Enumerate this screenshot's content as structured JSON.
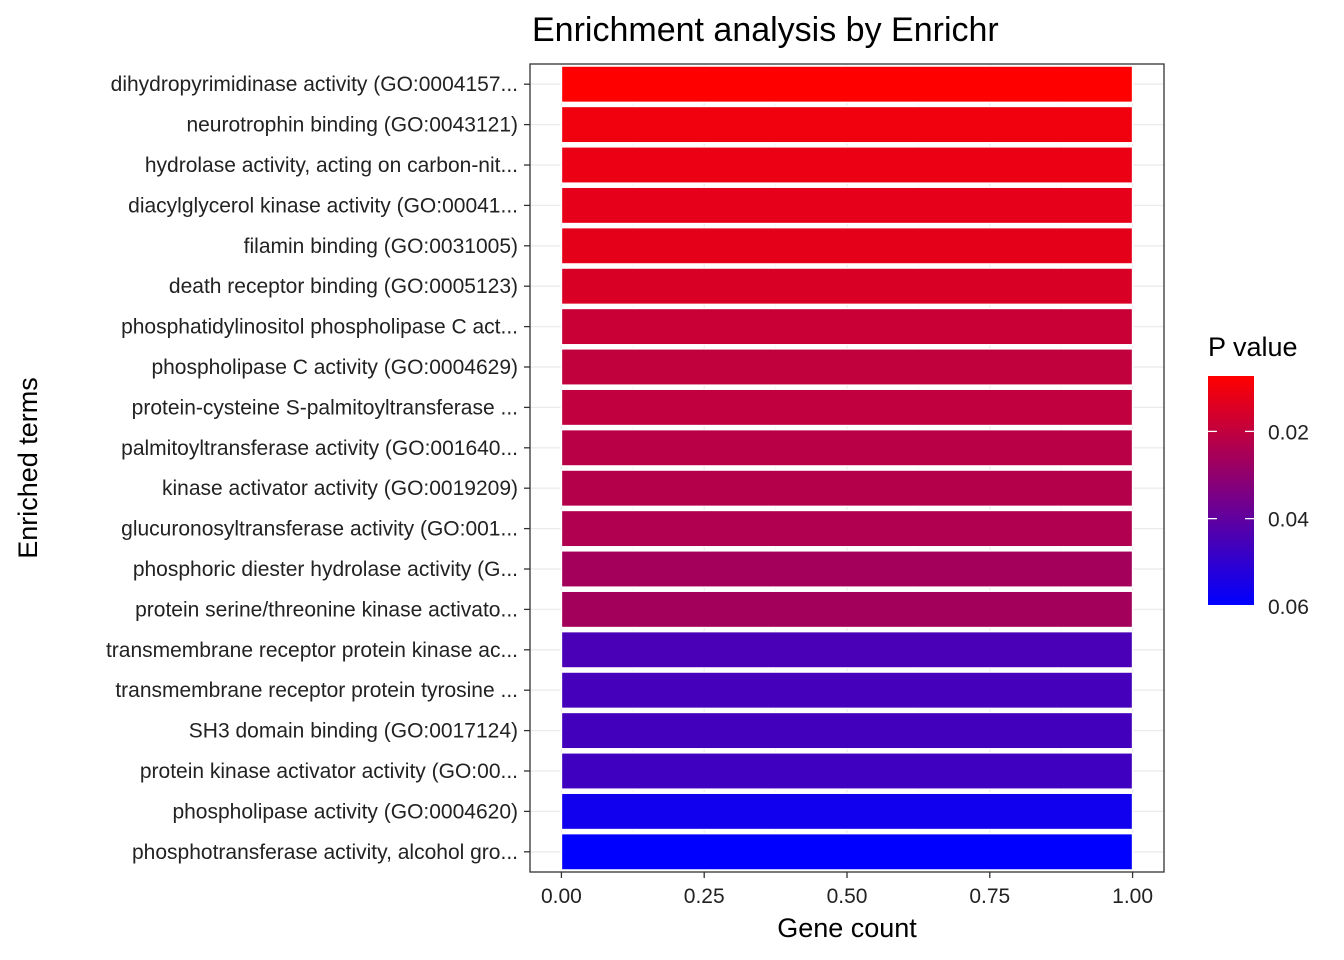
{
  "chart_data": {
    "type": "bar",
    "orientation": "horizontal",
    "title": "Enrichment analysis by Enrichr",
    "xlabel": "Gene count",
    "ylabel": "Enriched terms",
    "xlim": [
      -0.055,
      1.055
    ],
    "xticks": [
      0,
      0.25,
      0.5,
      0.75,
      1
    ],
    "xtick_labels": [
      "0.00",
      "0.25",
      "0.50",
      "0.75",
      "1.00"
    ],
    "grid": true,
    "categories": [
      "dihydropyrimidinase activity (GO:0004157...",
      "neurotrophin binding (GO:0043121)",
      "hydrolase activity, acting on carbon-nit...",
      "diacylglycerol kinase activity (GO:00041...",
      "filamin binding (GO:0031005)",
      "death receptor binding (GO:0005123)",
      "phosphatidylinositol phospholipase C act...",
      "phospholipase C activity (GO:0004629)",
      "protein-cysteine S-palmitoyltransferase ...",
      "palmitoyltransferase activity (GO:001640...",
      "kinase activator activity (GO:0019209)",
      "glucuronosyltransferase activity (GO:001...",
      "phosphoric diester hydrolase activity (G...",
      "protein serine/threonine kinase activato...",
      "transmembrane receptor protein kinase ac...",
      "transmembrane receptor protein tyrosine ...",
      "SH3 domain binding (GO:0017124)",
      "protein kinase activator activity (GO:00...",
      "phospholipase activity (GO:0004620)",
      "phosphotransferase activity, alcohol gro..."
    ],
    "values": [
      1,
      1,
      1,
      1,
      1,
      1,
      1,
      1,
      1,
      1,
      1,
      1,
      1,
      1,
      1,
      1,
      1,
      1,
      1,
      1
    ],
    "p_values": [
      0.0073,
      0.0101,
      0.0114,
      0.0124,
      0.0126,
      0.0152,
      0.0185,
      0.02,
      0.0203,
      0.0218,
      0.0228,
      0.0235,
      0.026,
      0.0262,
      0.0447,
      0.0458,
      0.046,
      0.0469,
      0.0563,
      0.0598
    ],
    "legend": {
      "title": "P value",
      "position": "right",
      "gradient_low_value_color": "#ff0000",
      "gradient_high_value_color": "#0000ff",
      "range": [
        0.0073,
        0.0598
      ],
      "ticks": [
        0.02,
        0.04,
        0.06
      ],
      "tick_labels": [
        "0.02",
        "0.04",
        "0.06"
      ]
    }
  }
}
